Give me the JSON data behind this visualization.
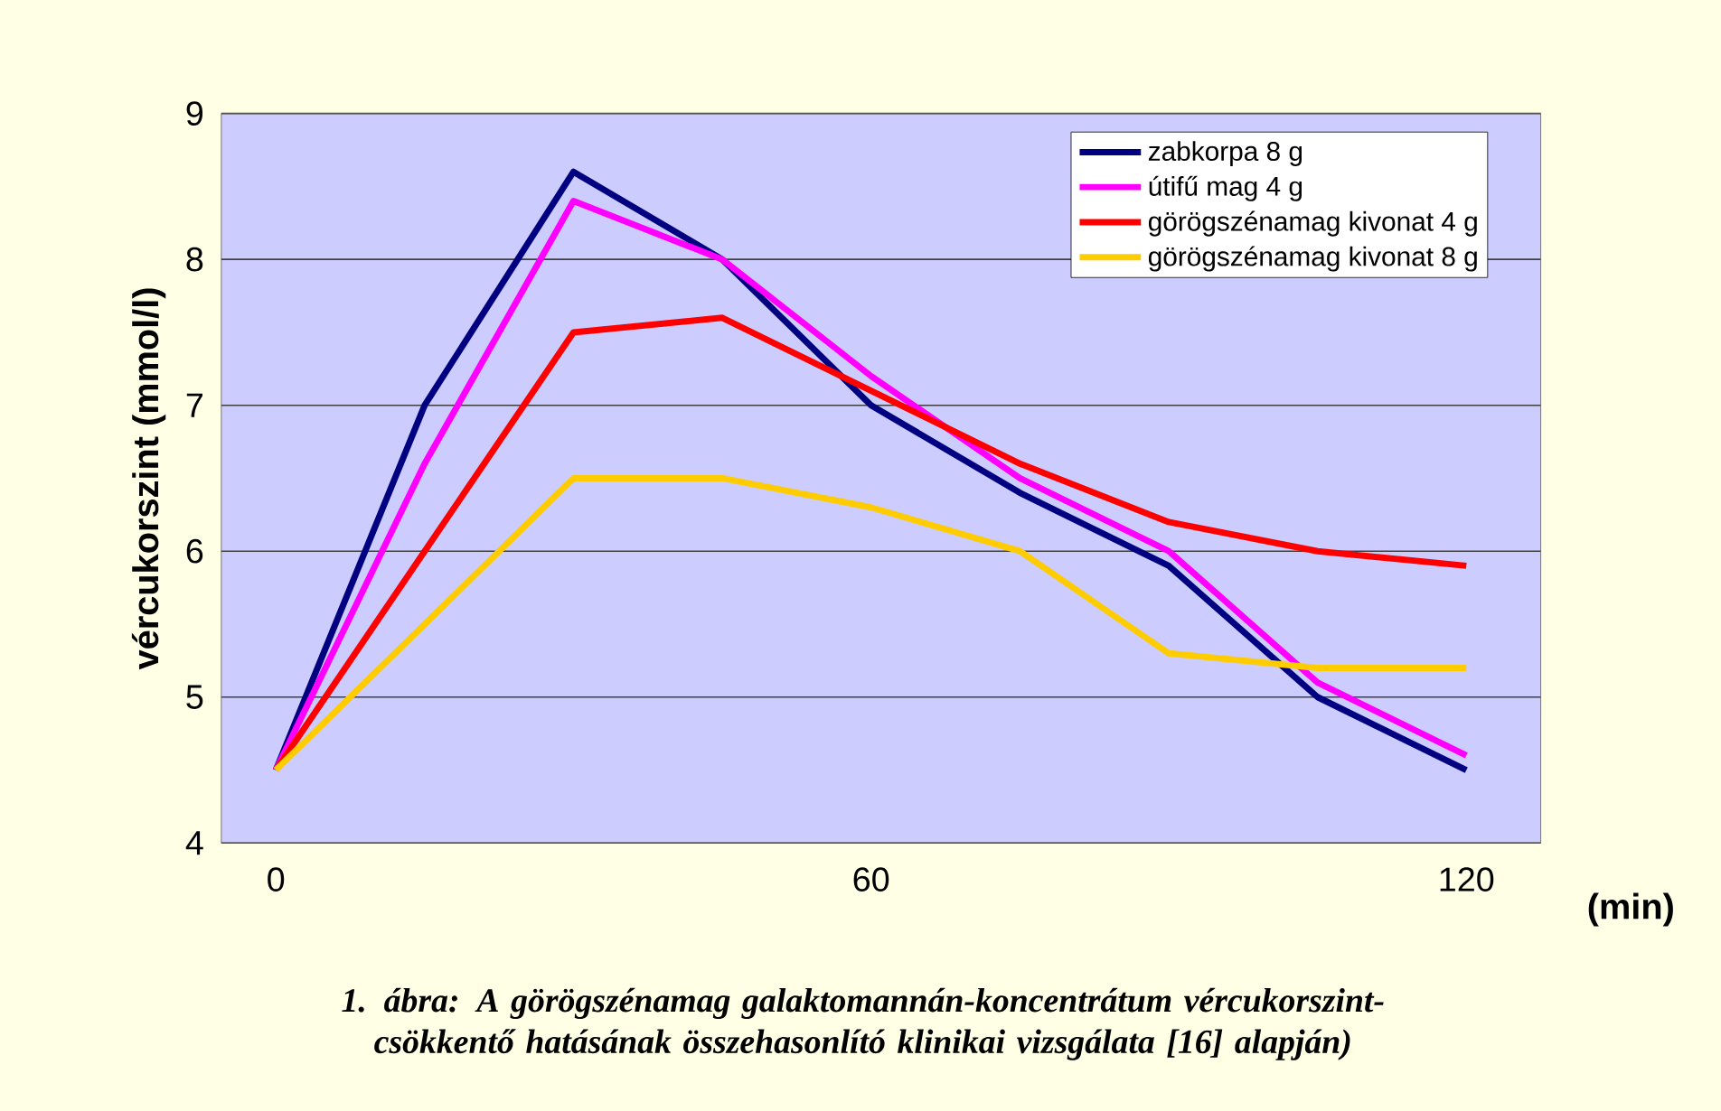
{
  "chart_data": {
    "type": "line",
    "xlabel": "(min)",
    "ylabel": "vércukorszint (mmol/l)",
    "annotations": [
      "1. ábra: A görögszénamag galaktomannán-koncentrátum vércukorszint-csökkentő hatásának összehasonlító klinikai vizsgálata [16] alapján)"
    ],
    "x": [
      0,
      15,
      30,
      45,
      60,
      75,
      90,
      105,
      120
    ],
    "xlim": [
      -5.5,
      127.5
    ],
    "xticks": [
      0,
      60,
      120
    ],
    "ylim": [
      4,
      9
    ],
    "yticks": [
      4,
      5,
      6,
      7,
      8,
      9
    ],
    "grid": "y",
    "legend": "top right",
    "marker": "none",
    "line_style": "solid",
    "series": [
      {
        "name": "zabkorpa 8 g",
        "color": "#000080",
        "values": [
          4.5,
          7.0,
          8.6,
          8.0,
          7.0,
          6.4,
          5.9,
          5.0,
          4.5
        ]
      },
      {
        "name": "útifű mag 4 g",
        "color": "#ff00ff",
        "values": [
          4.5,
          6.6,
          8.4,
          8.0,
          7.2,
          6.5,
          6.0,
          5.1,
          4.6
        ]
      },
      {
        "name": "görögszénamag kivonat 4 g",
        "color": "#ff0000",
        "values": [
          4.5,
          6.0,
          7.5,
          7.6,
          7.1,
          6.6,
          6.2,
          6.0,
          5.9
        ]
      },
      {
        "name": "görögszénamag kivonat 8 g",
        "color": "#ffcc00",
        "values": [
          4.5,
          5.5,
          6.5,
          6.5,
          6.3,
          6.0,
          5.3,
          5.2,
          5.2
        ]
      }
    ]
  }
}
